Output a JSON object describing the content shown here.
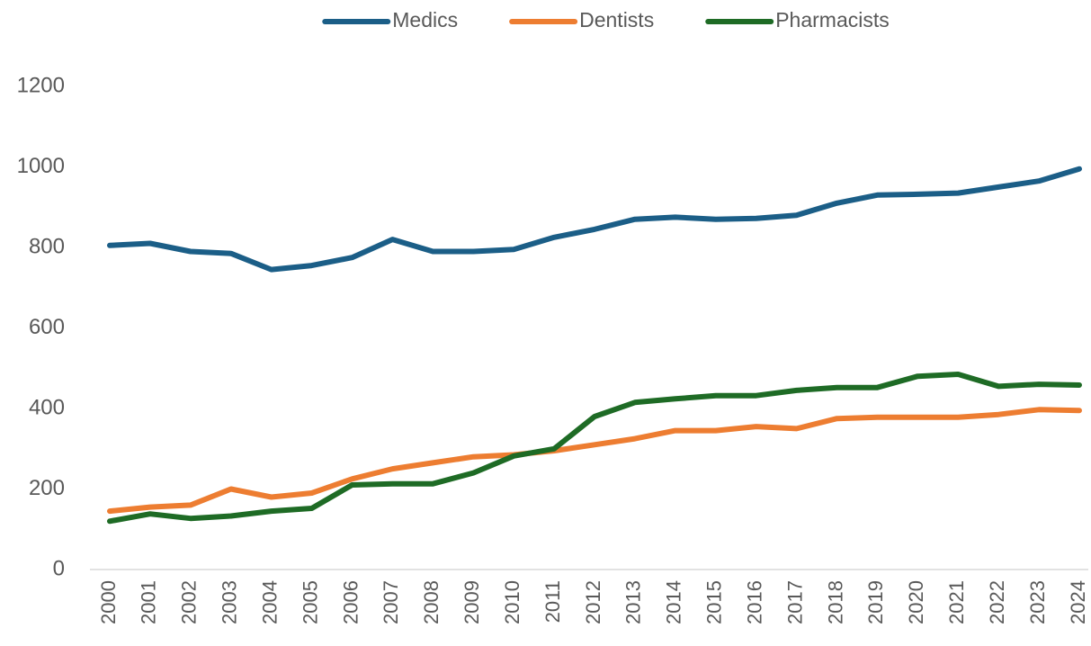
{
  "chart_data": {
    "type": "line",
    "categories": [
      "2000",
      "2001",
      "2002",
      "2003",
      "2004",
      "2005",
      "2006",
      "2007",
      "2008",
      "2009",
      "2010",
      "2011",
      "2012",
      "2013",
      "2014",
      "2015",
      "2016",
      "2017",
      "2018",
      "2019",
      "2020",
      "2021",
      "2022",
      "2023",
      "2024"
    ],
    "series": [
      {
        "name": "Medics",
        "color": "#1b5e87",
        "values": [
          805,
          810,
          790,
          785,
          745,
          755,
          775,
          820,
          790,
          790,
          795,
          825,
          845,
          870,
          875,
          870,
          872,
          880,
          910,
          930,
          932,
          935,
          950,
          965,
          995
        ]
      },
      {
        "name": "Dentists",
        "color": "#ed7d31",
        "values": [
          145,
          155,
          160,
          200,
          180,
          190,
          225,
          250,
          265,
          280,
          285,
          295,
          310,
          325,
          345,
          345,
          355,
          350,
          375,
          378,
          378,
          378,
          385,
          397,
          395
        ]
      },
      {
        "name": "Pharmacists",
        "color": "#1e6b25",
        "values": [
          120,
          138,
          127,
          133,
          145,
          152,
          210,
          213,
          213,
          240,
          282,
          300,
          380,
          415,
          424,
          432,
          432,
          445,
          452,
          452,
          480,
          485,
          455,
          460,
          458
        ]
      }
    ],
    "ylim": [
      0,
      1200
    ],
    "yticks": [
      0,
      200,
      400,
      600,
      800,
      1000,
      1200
    ],
    "grid": false,
    "legend": "top"
  }
}
